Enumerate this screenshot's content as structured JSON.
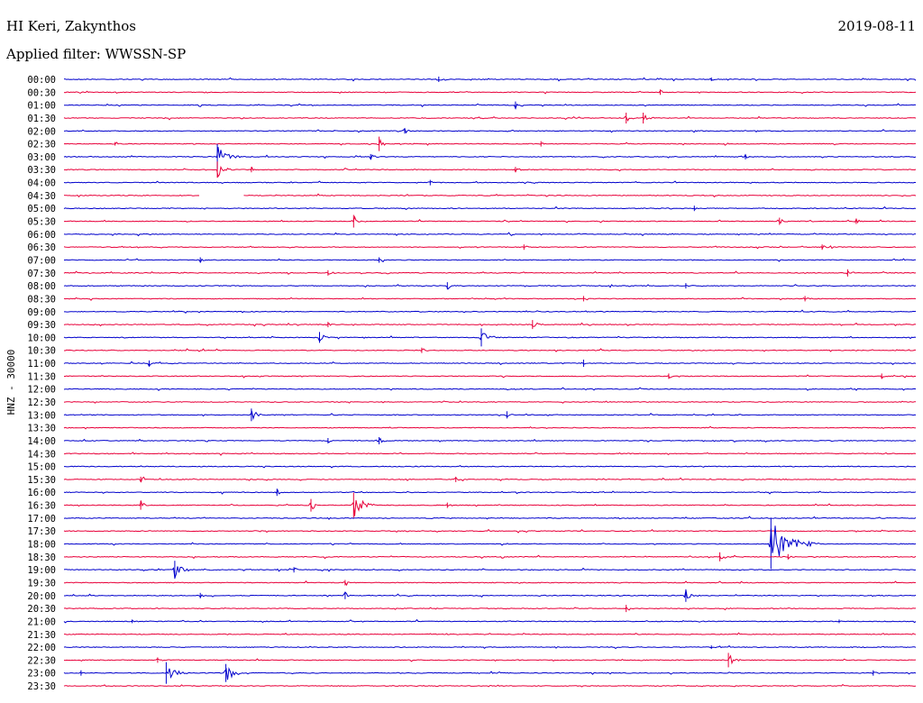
{
  "header": {
    "station": "HI Keri, Zakynthos",
    "date": "2019-08-11",
    "filter_label": "Applied filter:",
    "filter_value": "WWSSN-SP"
  },
  "channel_label": "HNZ - 30000",
  "colors": {
    "even_hour": "#0000cc",
    "half_hour": "#e8003a"
  },
  "chart_data": {
    "type": "line",
    "ylabel": "HNZ - 30000",
    "rows": [
      "00:00",
      "00:30",
      "01:00",
      "01:30",
      "02:00",
      "02:30",
      "03:00",
      "03:30",
      "04:00",
      "04:30",
      "05:00",
      "05:30",
      "06:00",
      "06:30",
      "07:00",
      "07:30",
      "08:00",
      "08:30",
      "09:00",
      "09:30",
      "10:00",
      "10:30",
      "11:00",
      "11:30",
      "12:00",
      "12:30",
      "13:00",
      "13:30",
      "14:00",
      "14:30",
      "15:00",
      "15:30",
      "16:00",
      "16:30",
      "17:00",
      "17:30",
      "18:00",
      "18:30",
      "19:00",
      "19:30",
      "20:00",
      "20:30",
      "21:00",
      "21:30",
      "22:00",
      "22:30",
      "23:00",
      "23:30"
    ],
    "trace_minutes": 30,
    "events": [
      {
        "row": "00:00",
        "t": 0.44,
        "amp": 3
      },
      {
        "row": "00:00",
        "t": 0.76,
        "amp": 2
      },
      {
        "row": "00:30",
        "t": 0.7,
        "amp": 3
      },
      {
        "row": "01:00",
        "t": 0.53,
        "amp": 4
      },
      {
        "row": "01:30",
        "t": 0.66,
        "amp": 6
      },
      {
        "row": "01:30",
        "t": 0.68,
        "amp": 6
      },
      {
        "row": "02:00",
        "t": 0.4,
        "amp": 3
      },
      {
        "row": "02:30",
        "t": 0.37,
        "amp": 8
      },
      {
        "row": "02:30",
        "t": 0.06,
        "amp": 2
      },
      {
        "row": "02:30",
        "t": 0.56,
        "amp": 3
      },
      {
        "row": "03:00",
        "t": 0.18,
        "amp": 14
      },
      {
        "row": "03:00",
        "t": 0.36,
        "amp": 3
      },
      {
        "row": "03:00",
        "t": 0.8,
        "amp": 3
      },
      {
        "row": "03:30",
        "t": 0.18,
        "amp": 9
      },
      {
        "row": "03:30",
        "t": 0.22,
        "amp": 3
      },
      {
        "row": "03:30",
        "t": 0.53,
        "amp": 3
      },
      {
        "row": "04:00",
        "t": 0.43,
        "amp": 3
      },
      {
        "row": "05:00",
        "t": 0.74,
        "amp": 3
      },
      {
        "row": "05:30",
        "t": 0.34,
        "amp": 7
      },
      {
        "row": "05:30",
        "t": 0.84,
        "amp": 4
      },
      {
        "row": "05:30",
        "t": 0.93,
        "amp": 3
      },
      {
        "row": "06:30",
        "t": 0.54,
        "amp": 3
      },
      {
        "row": "06:30",
        "t": 0.89,
        "amp": 3
      },
      {
        "row": "07:00",
        "t": 0.16,
        "amp": 3
      },
      {
        "row": "07:00",
        "t": 0.37,
        "amp": 3
      },
      {
        "row": "07:30",
        "t": 0.31,
        "amp": 3
      },
      {
        "row": "07:30",
        "t": 0.92,
        "amp": 4
      },
      {
        "row": "08:00",
        "t": 0.45,
        "amp": 4
      },
      {
        "row": "08:00",
        "t": 0.73,
        "amp": 3
      },
      {
        "row": "08:30",
        "t": 0.61,
        "amp": 3
      },
      {
        "row": "08:30",
        "t": 0.87,
        "amp": 3
      },
      {
        "row": "09:30",
        "t": 0.31,
        "amp": 3
      },
      {
        "row": "09:30",
        "t": 0.55,
        "amp": 5
      },
      {
        "row": "10:00",
        "t": 0.3,
        "amp": 6
      },
      {
        "row": "10:00",
        "t": 0.49,
        "amp": 10
      },
      {
        "row": "10:30",
        "t": 0.42,
        "amp": 3
      },
      {
        "row": "11:00",
        "t": 0.1,
        "amp": 3
      },
      {
        "row": "11:00",
        "t": 0.61,
        "amp": 4
      },
      {
        "row": "11:30",
        "t": 0.71,
        "amp": 3
      },
      {
        "row": "11:30",
        "t": 0.96,
        "amp": 3
      },
      {
        "row": "13:00",
        "t": 0.22,
        "amp": 7
      },
      {
        "row": "13:00",
        "t": 0.52,
        "amp": 4
      },
      {
        "row": "14:00",
        "t": 0.37,
        "amp": 4
      },
      {
        "row": "14:00",
        "t": 0.31,
        "amp": 3
      },
      {
        "row": "15:30",
        "t": 0.09,
        "amp": 3
      },
      {
        "row": "15:30",
        "t": 0.46,
        "amp": 3
      },
      {
        "row": "16:00",
        "t": 0.25,
        "amp": 4
      },
      {
        "row": "16:30",
        "t": 0.09,
        "amp": 5
      },
      {
        "row": "16:30",
        "t": 0.29,
        "amp": 7
      },
      {
        "row": "16:30",
        "t": 0.34,
        "amp": 14
      },
      {
        "row": "16:30",
        "t": 0.45,
        "amp": 3
      },
      {
        "row": "18:00",
        "t": 0.83,
        "amp": 28
      },
      {
        "row": "18:30",
        "t": 0.77,
        "amp": 5
      },
      {
        "row": "18:30",
        "t": 0.85,
        "amp": 3
      },
      {
        "row": "19:00",
        "t": 0.13,
        "amp": 10
      },
      {
        "row": "19:00",
        "t": 0.27,
        "amp": 3
      },
      {
        "row": "19:30",
        "t": 0.33,
        "amp": 3
      },
      {
        "row": "20:00",
        "t": 0.16,
        "amp": 3
      },
      {
        "row": "20:00",
        "t": 0.33,
        "amp": 4
      },
      {
        "row": "20:00",
        "t": 0.73,
        "amp": 7
      },
      {
        "row": "20:30",
        "t": 0.66,
        "amp": 4
      },
      {
        "row": "21:00",
        "t": 0.08,
        "amp": 2
      },
      {
        "row": "21:00",
        "t": 0.91,
        "amp": 2
      },
      {
        "row": "22:00",
        "t": 0.76,
        "amp": 2
      },
      {
        "row": "22:30",
        "t": 0.11,
        "amp": 3
      },
      {
        "row": "22:30",
        "t": 0.78,
        "amp": 8
      },
      {
        "row": "23:00",
        "t": 0.12,
        "amp": 12
      },
      {
        "row": "23:00",
        "t": 0.19,
        "amp": 10
      },
      {
        "row": "23:00",
        "t": 0.02,
        "amp": 3
      },
      {
        "row": "23:00",
        "t": 0.95,
        "amp": 3
      }
    ],
    "gaps": [
      {
        "row": "04:30",
        "t_start": 0.16,
        "t_end": 0.21
      }
    ]
  }
}
